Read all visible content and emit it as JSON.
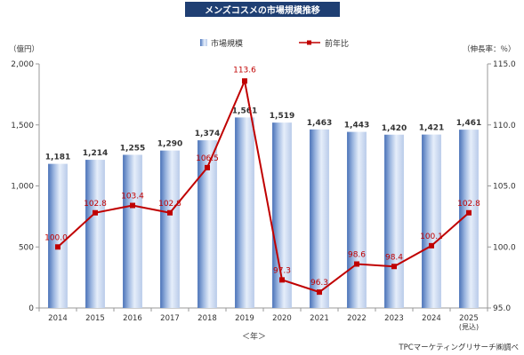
{
  "chart_data": {
    "type": "bar+line",
    "title": "メンズコスメの市場規模推移",
    "categories": [
      "2014",
      "2015",
      "2016",
      "2017",
      "2018",
      "2019",
      "2020",
      "2021",
      "2022",
      "2023",
      "2024",
      "2025"
    ],
    "category_sublabels": [
      "",
      "",
      "",
      "",
      "",
      "",
      "",
      "",
      "",
      "",
      "",
      "(見込)"
    ],
    "series": [
      {
        "name": "市場規模",
        "type": "bar",
        "axis": "left",
        "values": [
          1181,
          1214,
          1255,
          1290,
          1374,
          1561,
          1519,
          1463,
          1443,
          1420,
          1421,
          1461
        ],
        "labels": [
          "1,181",
          "1,214",
          "1,255",
          "1,290",
          "1,374",
          "1,561",
          "1,519",
          "1,463",
          "1,443",
          "1,420",
          "1,421",
          "1,461"
        ]
      },
      {
        "name": "前年比",
        "type": "line",
        "axis": "right",
        "values": [
          100.0,
          102.8,
          103.4,
          102.8,
          106.5,
          113.6,
          97.3,
          96.3,
          98.6,
          98.4,
          100.1,
          102.8
        ],
        "labels": [
          "100.0",
          "102.8",
          "103.4",
          "102.8",
          "106.5",
          "113.6",
          "97.3",
          "96.3",
          "98.6",
          "98.4",
          "100.1",
          "102.8"
        ]
      }
    ],
    "y_left": {
      "unit_label": "（億円）",
      "ylim": [
        0,
        2000
      ],
      "ticks": [
        0,
        500,
        1000,
        1500,
        2000
      ],
      "tick_labels": [
        "0",
        "500",
        "1,000",
        "1,500",
        "2,000"
      ]
    },
    "y_right": {
      "unit_label": "（伸長率：％）",
      "ylim": [
        95,
        115
      ],
      "ticks": [
        95,
        100,
        105,
        110,
        115
      ],
      "tick_labels": [
        "95.0",
        "100.0",
        "105.0",
        "110.0",
        "115.0"
      ]
    },
    "xlabel": "＜年＞",
    "legend_position": "top-center",
    "colors": {
      "bar_dark": "#4a72b8",
      "bar_light": "#e6eefa",
      "line": "#c00000",
      "label_line": "#c00000",
      "label_bar": "#333333"
    }
  },
  "source": "TPCマーケティングリサーチ㈱調べ"
}
